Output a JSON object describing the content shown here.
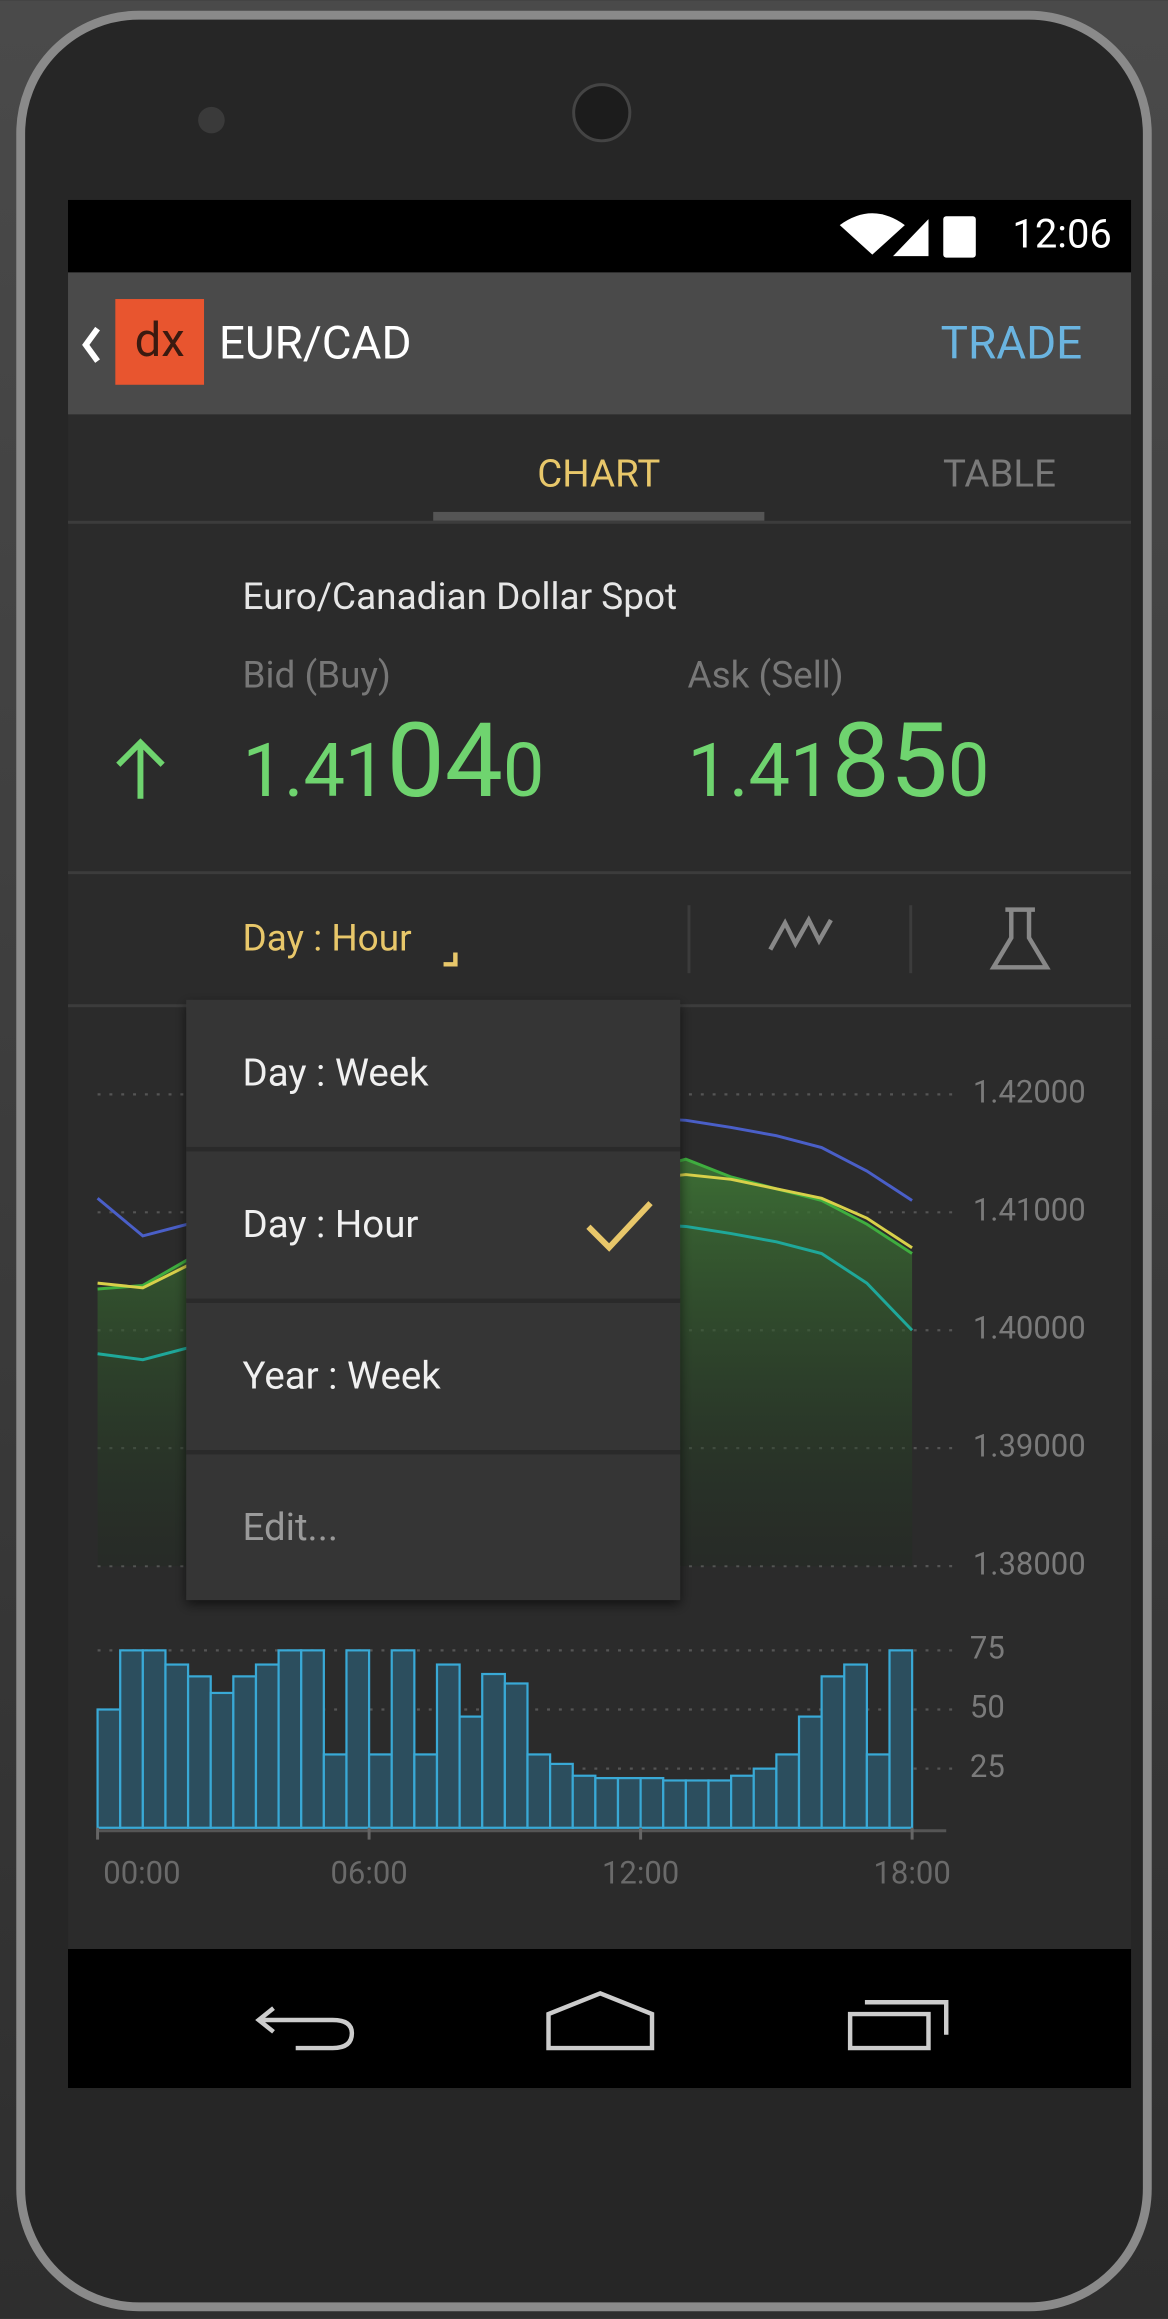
{
  "status_bar": {
    "time": "12:06"
  },
  "app_bar": {
    "logo": "dx",
    "title": "EUR/CAD",
    "action": "TRADE"
  },
  "tabs": [
    "CHART",
    "TABLE"
  ],
  "quote": {
    "name": "Euro/Canadian Dollar Spot",
    "bid_label": "Bid (Buy)",
    "ask_label": "Ask (Sell)",
    "bid": [
      "1.41",
      "04",
      "0"
    ],
    "ask": [
      "1.41",
      "85",
      "0"
    ]
  },
  "toolbar": {
    "period": "Day : Hour"
  },
  "menu": {
    "items": [
      "Day : Week",
      "Day : Hour",
      "Year : Week",
      "Edit..."
    ],
    "selected": 1
  },
  "chart_data": [
    {
      "type": "line",
      "x": [
        0,
        1,
        2,
        3,
        4,
        5,
        6,
        7,
        8,
        9,
        10,
        11,
        12,
        13,
        14,
        15,
        16,
        17,
        18
      ],
      "xlim": [
        0,
        18.1
      ],
      "ylim": [
        1.38,
        1.4215
      ],
      "yticks": [
        {
          "value": 1.42,
          "label": "1.42000"
        },
        {
          "value": 1.41,
          "label": "1.41000"
        },
        {
          "value": 1.4,
          "label": "1.40000"
        },
        {
          "value": 1.39,
          "label": "1.39000"
        },
        {
          "value": 1.38,
          "label": "1.38000"
        }
      ],
      "grid": true,
      "series": [
        {
          "color": "#3fae3f",
          "fill": true,
          "values": [
            1.4035,
            1.4038,
            1.406,
            1.408,
            1.41,
            1.411,
            1.4105,
            1.4115,
            1.412,
            1.4125,
            1.412,
            1.413,
            1.4135,
            1.4145,
            1.413,
            1.412,
            1.411,
            1.409,
            1.4065
          ]
        },
        {
          "color": "#4a5fc8",
          "fill": false,
          "values": [
            1.4112,
            1.408,
            1.409,
            1.411,
            1.413,
            1.415,
            1.416,
            1.417,
            1.4175,
            1.418,
            1.4182,
            1.4182,
            1.418,
            1.4178,
            1.4172,
            1.4165,
            1.4155,
            1.4135,
            1.411
          ]
        },
        {
          "color": "#1fa89a",
          "fill": false,
          "values": [
            1.398,
            1.3975,
            1.3985,
            1.4,
            1.402,
            1.404,
            1.4055,
            1.4065,
            1.4075,
            1.408,
            1.4085,
            1.4088,
            1.409,
            1.4088,
            1.4082,
            1.4075,
            1.4065,
            1.404,
            1.4
          ]
        },
        {
          "color": "#d8d04a",
          "fill": false,
          "values": [
            1.404,
            1.4036,
            1.4055,
            1.4075,
            1.4095,
            1.4105,
            1.4108,
            1.4112,
            1.4118,
            1.4122,
            1.4122,
            1.4125,
            1.4128,
            1.4132,
            1.4128,
            1.412,
            1.4112,
            1.4095,
            1.407
          ]
        }
      ]
    },
    {
      "type": "histogram",
      "bins": [
        0,
        0.5,
        1,
        1.5,
        2,
        2.5,
        3,
        3.5,
        4,
        4.5,
        5,
        5.5,
        6,
        6.5,
        7,
        7.5,
        8,
        8.5,
        9,
        9.5,
        10,
        10.5,
        11,
        11.5,
        12,
        12.5,
        13,
        13.5,
        14,
        14.5,
        15,
        15.5,
        16,
        16.5,
        17,
        17.5,
        18
      ],
      "values": [
        50,
        75,
        75,
        69,
        64,
        57,
        64,
        69,
        75,
        75,
        31,
        75,
        31,
        75,
        31,
        69,
        47,
        65,
        61,
        31,
        27,
        22,
        21,
        21,
        21,
        20,
        20,
        20,
        22,
        25,
        31,
        47,
        64,
        69,
        31,
        75
      ],
      "color": "#39a9d6",
      "xlim": [
        0,
        18.1
      ],
      "ylim": [
        0,
        80
      ],
      "yticks": [
        75,
        50,
        25
      ],
      "xticks": [
        {
          "value": 0,
          "label": "00:00"
        },
        {
          "value": 6,
          "label": "06:00"
        },
        {
          "value": 12,
          "label": "12:00"
        },
        {
          "value": 18,
          "label": "18:00"
        }
      ],
      "grid": true
    }
  ]
}
